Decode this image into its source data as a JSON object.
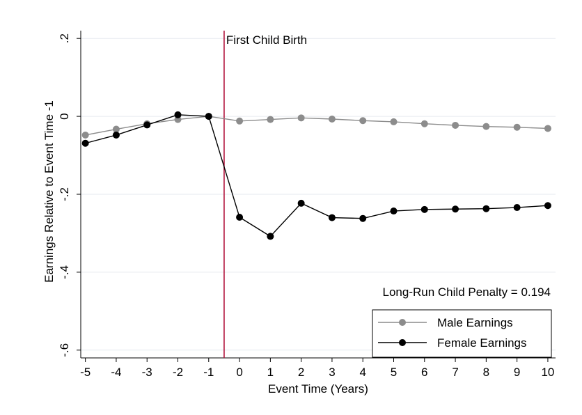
{
  "chart_data": {
    "type": "line",
    "xlabel": "Event Time (Years)",
    "ylabel": "Earnings Relative to Event Time -1",
    "x": [
      -5,
      -4,
      -3,
      -2,
      -1,
      0,
      1,
      2,
      3,
      4,
      5,
      6,
      7,
      8,
      9,
      10
    ],
    "xticks": [
      "-5",
      "-4",
      "-3",
      "-2",
      "-1",
      "0",
      "1",
      "2",
      "3",
      "4",
      "5",
      "6",
      "7",
      "8",
      "9",
      "10"
    ],
    "yticks": [
      ".2",
      "0",
      "-.2",
      "-.4",
      "-.6"
    ],
    "ytick_values": [
      0.2,
      0,
      -0.2,
      -0.4,
      -0.6
    ],
    "xlim": [
      -5.15,
      10.25
    ],
    "ylim": [
      -0.62,
      0.22
    ],
    "grid": true,
    "series": [
      {
        "name": "Male Earnings",
        "color": "#8c8c8c",
        "values": [
          -0.048,
          -0.033,
          -0.019,
          -0.008,
          0.0,
          -0.012,
          -0.008,
          -0.004,
          -0.007,
          -0.011,
          -0.014,
          -0.019,
          -0.023,
          -0.026,
          -0.028,
          -0.031
        ]
      },
      {
        "name": "Female Earnings",
        "color": "#000000",
        "values": [
          -0.069,
          -0.048,
          -0.022,
          0.004,
          0.0,
          -0.259,
          -0.308,
          -0.223,
          -0.26,
          -0.262,
          -0.243,
          -0.239,
          -0.238,
          -0.237,
          -0.234,
          -0.229
        ]
      }
    ],
    "event_line": {
      "x": -0.5,
      "label": "First Child Birth",
      "color": "#b0113a"
    },
    "annotation": "Long-Run Child Penalty = 0.194",
    "legend_position": "bottom-right"
  }
}
